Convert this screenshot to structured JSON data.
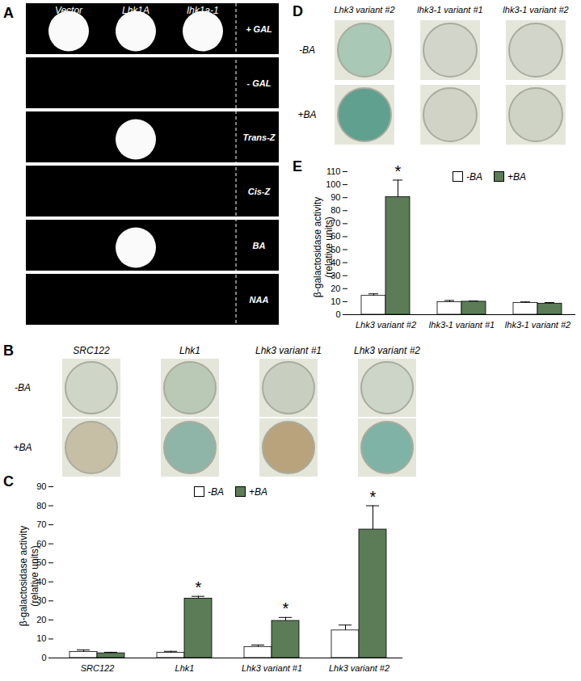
{
  "chart_data": [
    {
      "type": "bar",
      "panel": "C",
      "ylabel": "β-galactosidase activity (relative units)",
      "categories": [
        "SRC122",
        "Lhk1",
        "Lhk3 variant #1",
        "Lhk3 variant #2"
      ],
      "series": [
        {
          "name": "-BA",
          "color": "#ffffff",
          "values": [
            3.2,
            2.7,
            5.8,
            14.5
          ],
          "errors": [
            1.0,
            0.8,
            1.0,
            2.8
          ]
        },
        {
          "name": "+BA",
          "color": "#5b7c57",
          "values": [
            2.5,
            31.2,
            19.5,
            67.5
          ],
          "errors": [
            0.5,
            1.2,
            1.8,
            12.5
          ]
        }
      ],
      "ylim": [
        0,
        90
      ],
      "yticks": [
        0,
        10,
        20,
        30,
        40,
        50,
        60,
        70,
        80,
        90
      ],
      "legend": "top",
      "annotations": [
        {
          "text": "*",
          "category": "Lhk1",
          "series": "+BA"
        },
        {
          "text": "*",
          "category": "Lhk3 variant #1",
          "series": "+BA"
        },
        {
          "text": "*",
          "category": "Lhk3 variant #2",
          "series": "+BA"
        }
      ]
    },
    {
      "type": "bar",
      "panel": "E",
      "ylabel": "β-galactosidase activity (relative units)",
      "categories": [
        "Lhk3 variant #2",
        "lhk3-1 variant #1",
        "lhk3-1 variant #2"
      ],
      "series": [
        {
          "name": "-BA",
          "color": "#ffffff",
          "values": [
            14.5,
            9.7,
            9.0
          ],
          "errors": [
            1.5,
            1.2,
            0.8
          ]
        },
        {
          "name": "+BA",
          "color": "#5b7c57",
          "values": [
            90.5,
            10.0,
            8.5
          ],
          "errors": [
            13,
            0.5,
            0.8
          ]
        }
      ],
      "ylim": [
        0,
        110
      ],
      "yticks": [
        0,
        10,
        20,
        30,
        40,
        50,
        60,
        70,
        80,
        90,
        100,
        110
      ],
      "legend": "top",
      "annotations": [
        {
          "text": "*",
          "category": "Lhk3 variant #2",
          "series": "+BA"
        }
      ]
    }
  ],
  "image_panels": [
    {
      "panel": "A",
      "columns": [
        "Vector",
        "Lhk1A",
        "lhk1a-1"
      ],
      "rows": [
        "+ GAL",
        "- GAL",
        "Trans-Z",
        "Cis-Z",
        "BA",
        "NAA"
      ],
      "growth": [
        [
          true,
          true,
          true
        ],
        [
          false,
          false,
          false
        ],
        [
          false,
          true,
          false
        ],
        [
          false,
          false,
          false
        ],
        [
          false,
          true,
          false
        ],
        [
          false,
          false,
          false
        ]
      ]
    },
    {
      "panel": "B",
      "columns": [
        "SRC122",
        "Lhk1",
        "Lhk3 variant #1",
        "Lhk3 variant #2"
      ],
      "rows": [
        "-BA",
        "+BA"
      ],
      "plate_colors": [
        [
          "#cfd6c8",
          "#b9c9b6",
          "#c9cfc0",
          "#cdd5c9"
        ],
        [
          "#c7bfa5",
          "#8fb5a8",
          "#b9a37d",
          "#7fb3a5"
        ]
      ]
    },
    {
      "panel": "D",
      "columns": [
        "Lhk3 variant #2",
        "lhk3-1 variant #1",
        "lhk3-1 variant #2"
      ],
      "rows": [
        "-BA",
        "+BA"
      ],
      "plate_colors": [
        [
          "#a9c8b5",
          "#d2d5c9",
          "#d2d5c9"
        ],
        [
          "#5fa08f",
          "#d0d3c6",
          "#cfd3c5"
        ]
      ]
    }
  ]
}
